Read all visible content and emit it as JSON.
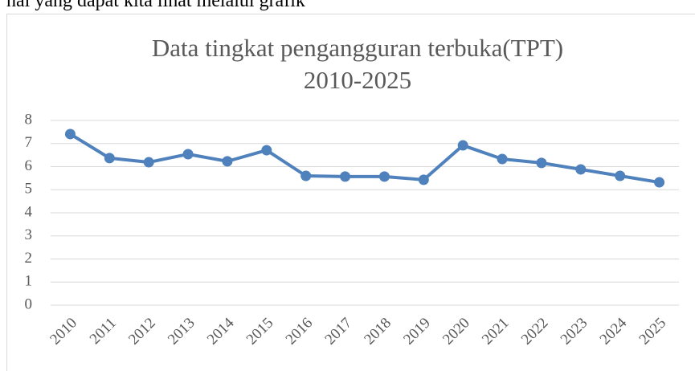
{
  "header_text": "hal yang dapat kita lihat melalui grafik",
  "chart_data": {
    "type": "line",
    "title": [
      "Data tingkat pengangguran terbuka(TPT)",
      "2010-2025"
    ],
    "categories": [
      "2010",
      "2011",
      "2012",
      "2013",
      "2014",
      "2015",
      "2016",
      "2017",
      "2018",
      "2019",
      "2020",
      "2021",
      "2022",
      "2023",
      "2024",
      "2025"
    ],
    "series": [
      {
        "name": "TPT",
        "color": "#4f81bd",
        "values": [
          7.41,
          6.37,
          6.19,
          6.54,
          6.23,
          6.71,
          5.6,
          5.57,
          5.57,
          5.43,
          6.92,
          6.33,
          6.16,
          5.88,
          5.6,
          5.32
        ]
      }
    ],
    "ylim": [
      0,
      8
    ],
    "yticks": [
      0,
      1,
      2,
      3,
      4,
      5,
      6,
      7,
      8
    ],
    "grid": true,
    "legend": false
  }
}
